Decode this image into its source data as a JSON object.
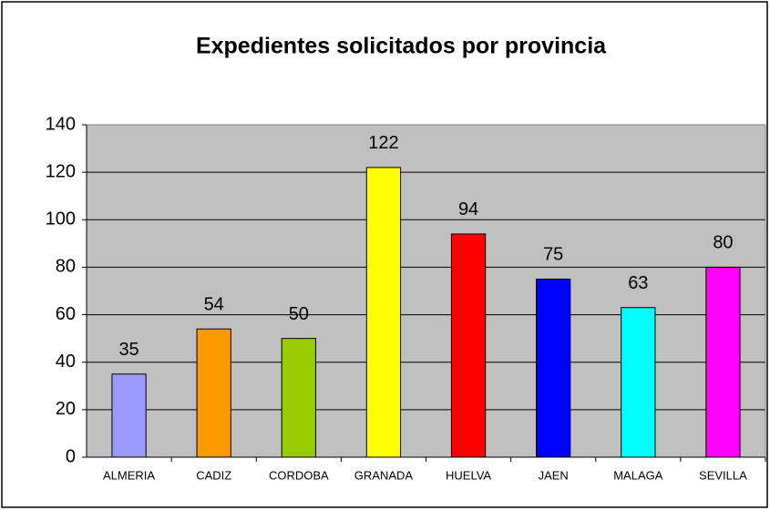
{
  "chart_data": {
    "type": "bar",
    "title": "Expedientes solicitados por provincia",
    "categories": [
      "ALMERIA",
      "CADIZ",
      "CORDOBA",
      "GRANADA",
      "HUELVA",
      "JAEN",
      "MALAGA",
      "SEVILLA"
    ],
    "values": [
      35,
      54,
      50,
      122,
      94,
      75,
      63,
      80
    ],
    "colors": [
      "#9999ff",
      "#ff9900",
      "#99cc00",
      "#ffff00",
      "#ff0000",
      "#0000ff",
      "#00ffff",
      "#ff00ff"
    ],
    "ylim": [
      0,
      140
    ],
    "yticks": [
      0,
      20,
      40,
      60,
      80,
      100,
      120,
      140
    ],
    "grid": true
  }
}
